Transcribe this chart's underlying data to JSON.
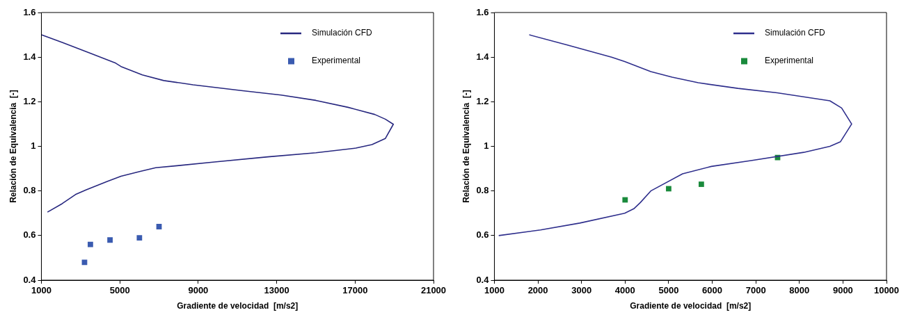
{
  "chart_data": [
    {
      "type": "line",
      "xlabel": "Gradiente de velocidad  [m/s2]",
      "ylabel": "Relación de Equivalencia  [-]",
      "xlim": [
        1000,
        21000
      ],
      "xticks": [
        1000,
        5000,
        9000,
        13000,
        17000,
        21000
      ],
      "ylim": [
        0.4,
        1.6
      ],
      "yticks": [
        0.4,
        0.6,
        0.8,
        1,
        1.2,
        1.4,
        1.6
      ],
      "grid": false,
      "legend": "top right",
      "series": [
        {
          "name": "Simulación CFD",
          "type": "line",
          "marker": "none",
          "color": "#27277f",
          "x": [
            1000,
            2060,
            3420,
            4790,
            5060,
            6150,
            7240,
            8740,
            11190,
            13230,
            15000,
            16640,
            18000,
            18540,
            18950,
            18540,
            17860,
            17040,
            15000,
            12550,
            9830,
            7920,
            6830,
            6010,
            5060,
            4380,
            3290,
            2740,
            2060,
            1310
          ],
          "values": [
            1.5,
            1.466,
            1.42,
            1.373,
            1.358,
            1.32,
            1.295,
            1.276,
            1.25,
            1.23,
            1.206,
            1.175,
            1.143,
            1.122,
            1.099,
            1.035,
            1.008,
            0.992,
            0.971,
            0.953,
            0.93,
            0.913,
            0.904,
            0.887,
            0.866,
            0.843,
            0.805,
            0.784,
            0.743,
            0.705
          ]
        },
        {
          "name": "Experimental",
          "type": "scatter",
          "marker": "square",
          "color": "#3a5bb0",
          "x": [
            3200,
            3500,
            4500,
            6000,
            7000
          ],
          "values": [
            0.48,
            0.56,
            0.58,
            0.59,
            0.64
          ]
        }
      ]
    },
    {
      "type": "line",
      "xlabel": "Gradiente de velocidad  [m/s2]",
      "ylabel": "Relación de Equivalencia  [-]",
      "xlim": [
        1000,
        10000
      ],
      "xticks": [
        1000,
        2000,
        3000,
        4000,
        5000,
        6000,
        7000,
        8000,
        9000,
        10000
      ],
      "ylim": [
        0.4,
        1.6
      ],
      "yticks": [
        0.4,
        0.6,
        0.8,
        1,
        1.2,
        1.4,
        1.6
      ],
      "grid": false,
      "legend": "top right",
      "series": [
        {
          "name": "Simulación CFD",
          "type": "line",
          "marker": "none",
          "color": "#2e2e8c",
          "x": [
            1800,
            2660,
            3690,
            3990,
            4590,
            5080,
            5680,
            6590,
            7490,
            8700,
            8970,
            9200,
            8940,
            8700,
            8100,
            6890,
            5980,
            5320,
            4590,
            4350,
            4200,
            3990,
            2960,
            2060,
            1100
          ],
          "values": [
            1.5,
            1.455,
            1.4,
            1.38,
            1.335,
            1.31,
            1.285,
            1.26,
            1.24,
            1.204,
            1.172,
            1.1,
            1.02,
            1.0,
            0.973,
            0.936,
            0.91,
            0.877,
            0.8,
            0.748,
            0.72,
            0.7,
            0.656,
            0.625,
            0.6
          ]
        },
        {
          "name": "Experimental",
          "type": "scatter",
          "marker": "square",
          "color": "#1a8a3c",
          "x": [
            4000,
            5000,
            5750,
            7500
          ],
          "values": [
            0.76,
            0.81,
            0.83,
            0.95
          ]
        }
      ]
    }
  ]
}
